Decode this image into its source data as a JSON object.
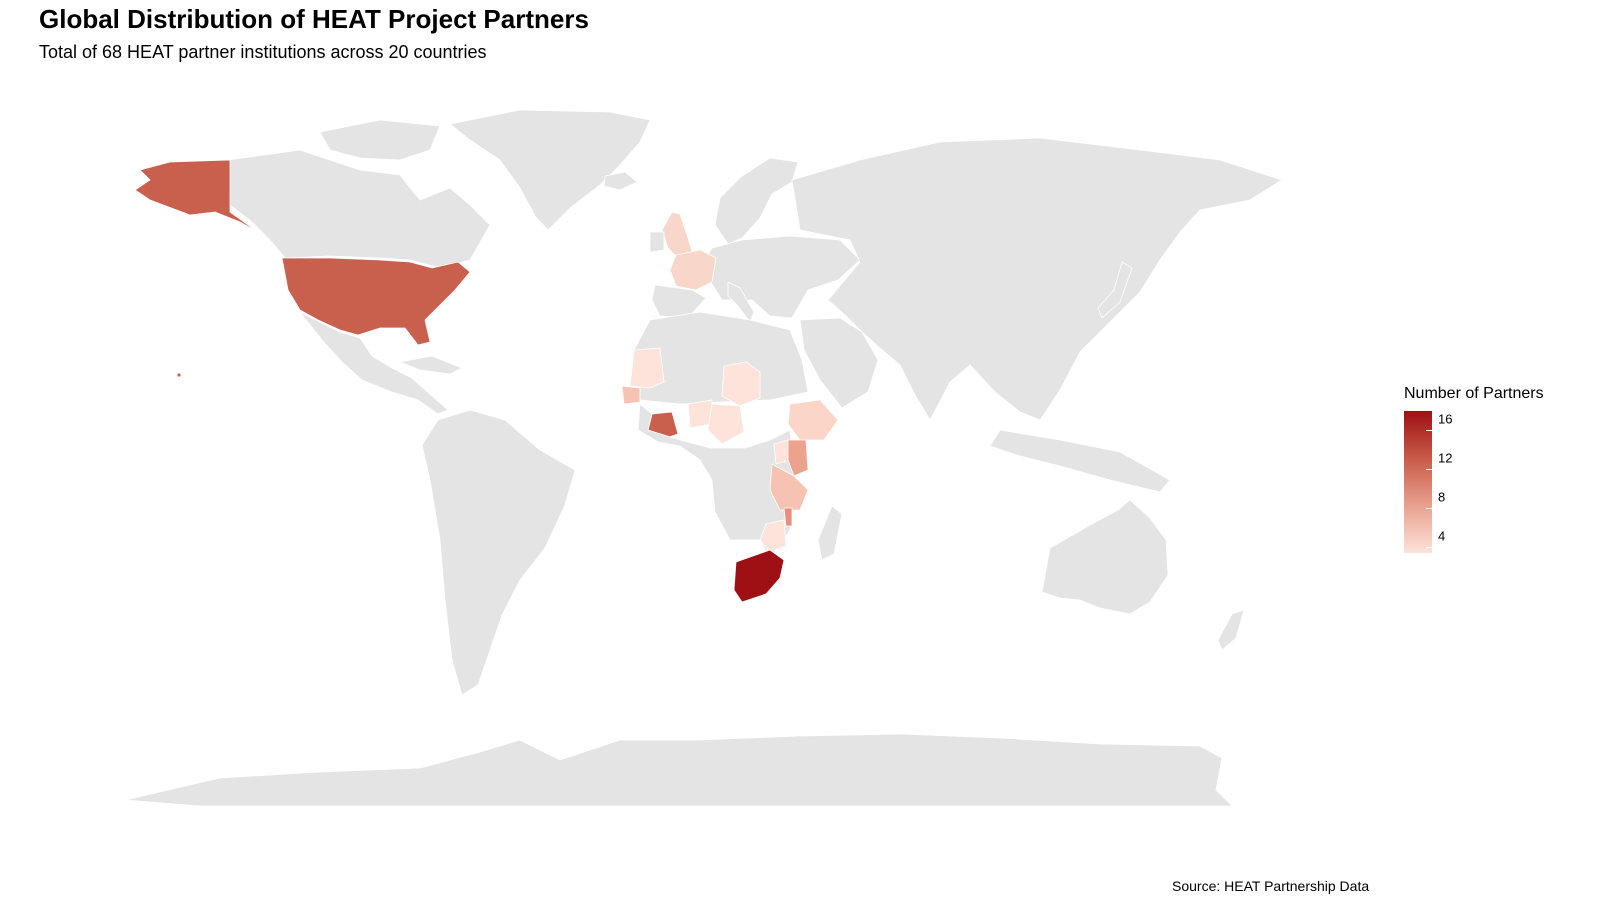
{
  "title": "Global Distribution of HEAT Project Partners",
  "subtitle": "Total of 68 HEAT partner institutions across 20 countries",
  "caption": "Source: HEAT Partnership Data",
  "legend": {
    "title": "Number of Partners",
    "ticks": [
      "16",
      "12",
      "8",
      "4"
    ],
    "range": [
      1,
      16
    ],
    "colors": {
      "low": "#fde3da",
      "mid": "#e8a18e",
      "high": "#9e1014"
    }
  },
  "colors": {
    "land": "#e4e4e4",
    "border": "#ffffff",
    "background": "#ffffff"
  }
}
